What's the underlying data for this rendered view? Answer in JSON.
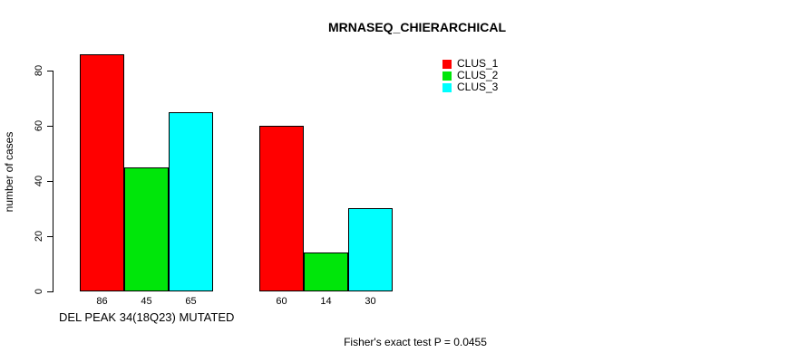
{
  "chart_data": {
    "type": "bar",
    "title": "MRNASEQ_CHIERARCHICAL",
    "ylabel": "number of cases",
    "xlabel": "DEL PEAK 34(18Q23) MUTATED",
    "ylim": [
      0,
      80
    ],
    "yticks": [
      0,
      20,
      40,
      60,
      80
    ],
    "grid": false,
    "legend_position": "top-right",
    "show_value_labels": true,
    "series": [
      {
        "name": "CLUS_1",
        "color": "#ff0000",
        "values": [
          86,
          60
        ]
      },
      {
        "name": "CLUS_2",
        "color": "#00e60a",
        "values": [
          45,
          14
        ]
      },
      {
        "name": "CLUS_3",
        "color": "#00ffff",
        "values": [
          65,
          30
        ]
      }
    ],
    "annotation": "Fisher's exact test P = 0.0455"
  }
}
